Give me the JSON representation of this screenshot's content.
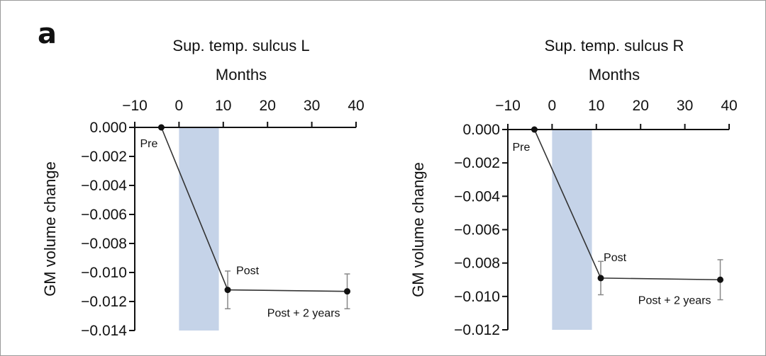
{
  "figure": {
    "panel_label": "a",
    "colors": {
      "shade": "#c5d3e8",
      "line": "#333333",
      "errorbar": "#888888",
      "axis": "#111111"
    }
  },
  "chart_data": [
    {
      "type": "line",
      "title": "Sup. temp. sulcus L",
      "xlabel": "Months",
      "ylabel": "GM volume change",
      "xlim": [
        -10,
        40
      ],
      "ylim": [
        -0.014,
        0
      ],
      "xticks": [
        -10,
        0,
        10,
        20,
        30,
        40
      ],
      "xtick_labels": [
        "−10",
        "0",
        "10",
        "20",
        "30",
        "40"
      ],
      "yticks": [
        0,
        -0.002,
        -0.004,
        -0.006,
        -0.008,
        -0.01,
        -0.012,
        -0.014
      ],
      "ytick_labels": [
        "0.000",
        "−0.002",
        "−0.004",
        "−0.006",
        "−0.008",
        "−0.010",
        "−0.012",
        "−0.014"
      ],
      "x_axis_position": "top",
      "shaded_interval": [
        0,
        9
      ],
      "points": [
        {
          "x": -4,
          "y": 0.0,
          "err": null,
          "label": "Pre"
        },
        {
          "x": 11,
          "y": -0.0112,
          "err": 0.0013,
          "label": "Post"
        },
        {
          "x": 38,
          "y": -0.0113,
          "err": 0.0012,
          "label": "Post + 2 years"
        }
      ]
    },
    {
      "type": "line",
      "title": "Sup. temp. sulcus R",
      "xlabel": "Months",
      "ylabel": "GM volume change",
      "xlim": [
        -10,
        40
      ],
      "ylim": [
        -0.012,
        0
      ],
      "xticks": [
        -10,
        0,
        10,
        20,
        30,
        40
      ],
      "xtick_labels": [
        "−10",
        "0",
        "10",
        "20",
        "30",
        "40"
      ],
      "yticks": [
        0,
        -0.002,
        -0.004,
        -0.006,
        -0.008,
        -0.01,
        -0.012
      ],
      "ytick_labels": [
        "0.000",
        "−0.002",
        "−0.004",
        "−0.006",
        "−0.008",
        "−0.010",
        "−0.012"
      ],
      "x_axis_position": "top",
      "shaded_interval": [
        0,
        9
      ],
      "points": [
        {
          "x": -4,
          "y": 0.0,
          "err": null,
          "label": "Pre"
        },
        {
          "x": 11,
          "y": -0.0089,
          "err": 0.001,
          "label": "Post"
        },
        {
          "x": 38,
          "y": -0.009,
          "err": 0.0012,
          "label": "Post + 2 years"
        }
      ]
    }
  ]
}
